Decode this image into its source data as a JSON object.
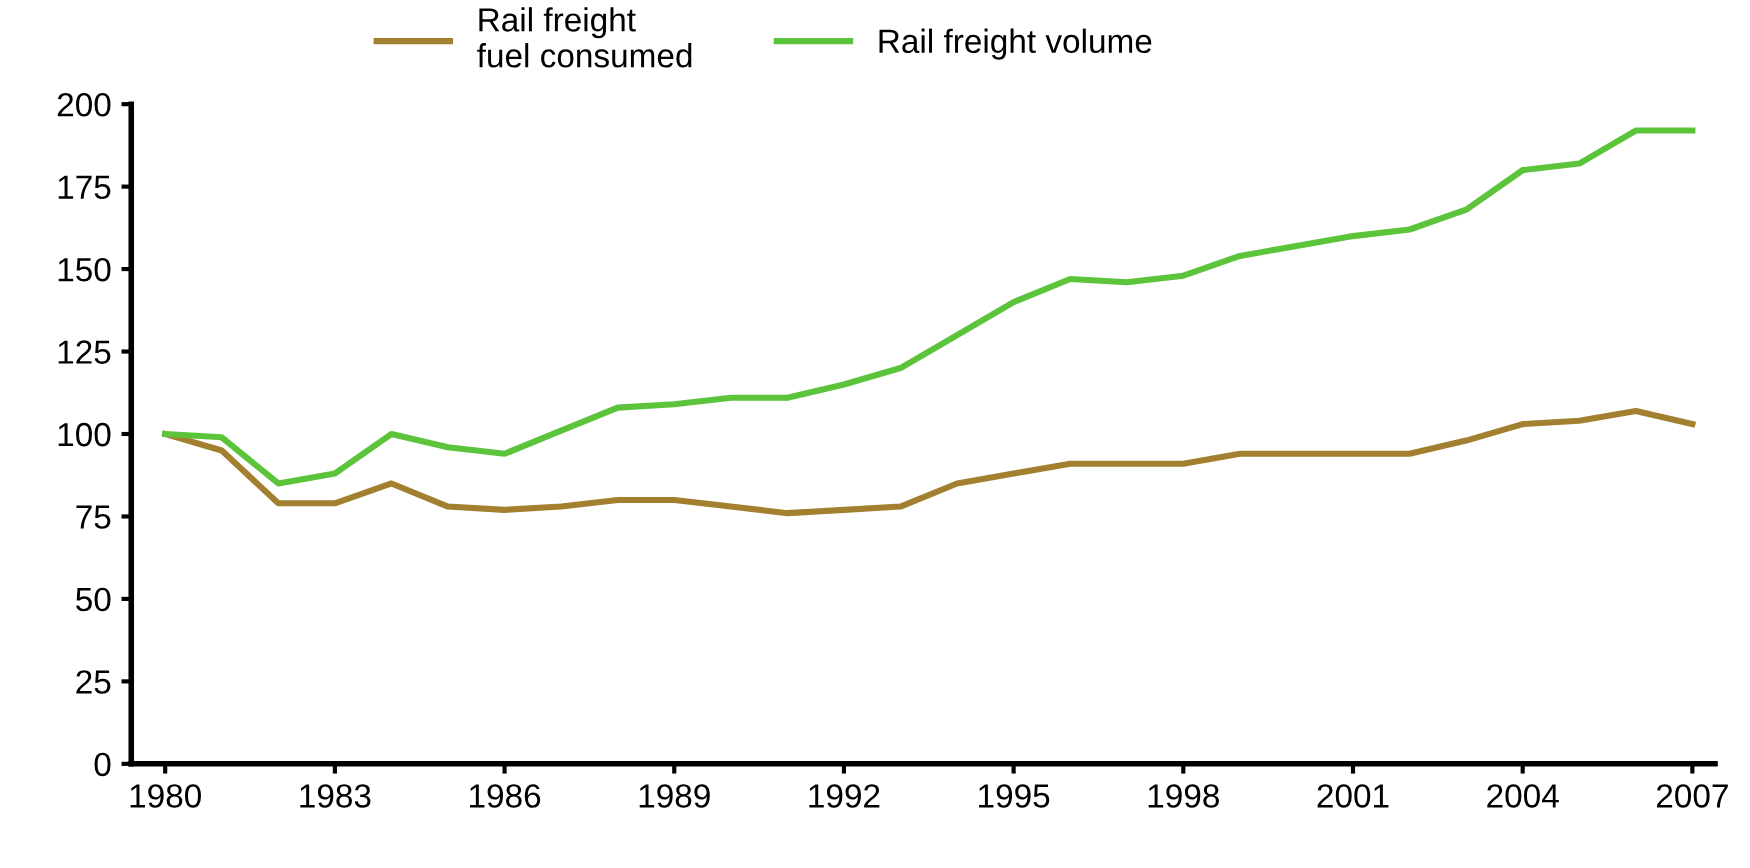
{
  "chart_data": {
    "type": "line",
    "x": [
      1980,
      1981,
      1982,
      1983,
      1984,
      1985,
      1986,
      1987,
      1988,
      1989,
      1990,
      1991,
      1992,
      1993,
      1994,
      1995,
      1996,
      1997,
      1998,
      1999,
      2000,
      2001,
      2002,
      2003,
      2004,
      2005,
      2006,
      2007
    ],
    "series": [
      {
        "name": "Rail freight\nfuel consumed",
        "color": "#a3802f",
        "values": [
          100,
          95,
          79,
          79,
          85,
          78,
          77,
          78,
          80,
          80,
          78,
          76,
          77,
          78,
          85,
          88,
          91,
          91,
          91,
          94,
          94,
          94,
          94,
          98,
          103,
          104,
          107,
          103
        ]
      },
      {
        "name": "Rail freight volume",
        "color": "#5cc43a",
        "values": [
          100,
          99,
          85,
          88,
          100,
          96,
          94,
          101,
          108,
          109,
          111,
          111,
          115,
          120,
          130,
          140,
          147,
          146,
          148,
          154,
          157,
          160,
          162,
          168,
          180,
          182,
          192,
          192
        ]
      }
    ],
    "xlim": [
      1979.4,
      2007.4
    ],
    "xticks": [
      1980,
      1983,
      1986,
      1989,
      1992,
      1995,
      1998,
      2001,
      2004,
      2007
    ],
    "ylim": [
      0,
      200
    ],
    "yticks": [
      0,
      25,
      50,
      75,
      100,
      125,
      150,
      175,
      200
    ],
    "grid": false,
    "legend": "top",
    "marker": "none",
    "line_style": "solid"
  }
}
